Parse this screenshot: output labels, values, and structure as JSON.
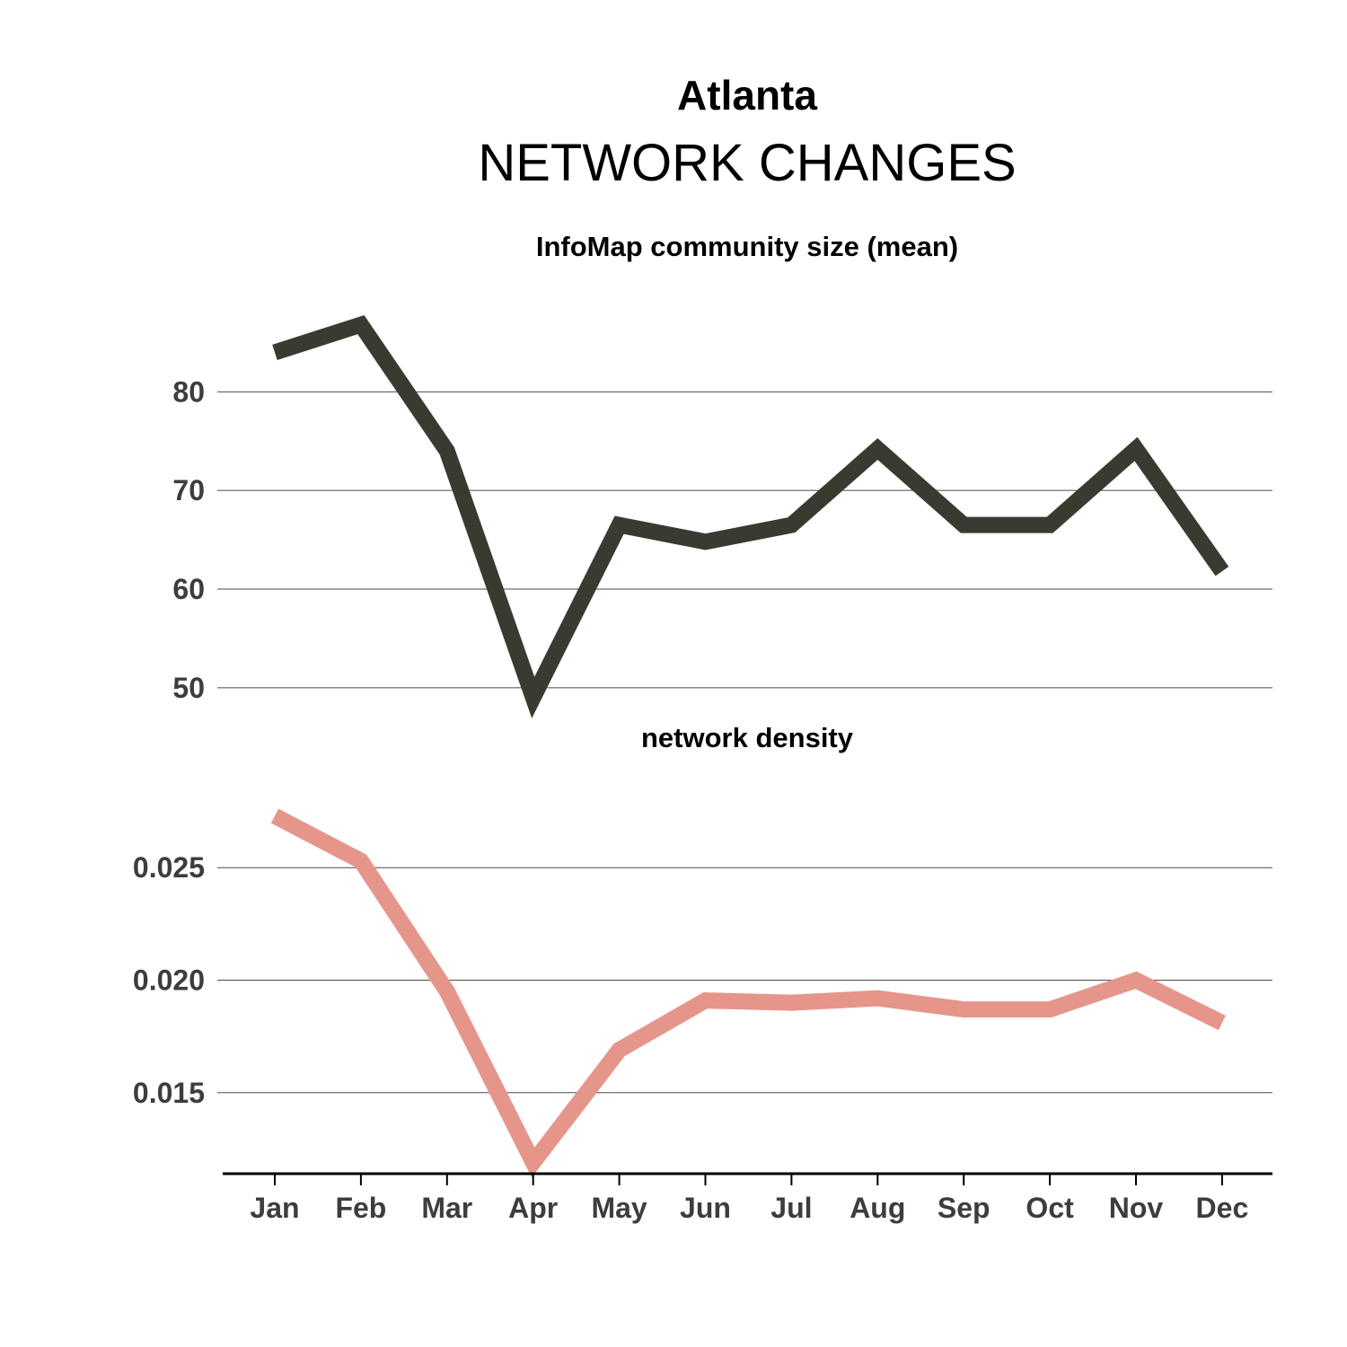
{
  "title": "Atlanta",
  "subtitle": "NETWORK CHANGES",
  "colors": {
    "community_size": "#3b3a31",
    "density": "#e6958a"
  },
  "chart_data": [
    {
      "type": "line",
      "title": "InfoMap community size (mean)",
      "categories": [
        "Jan",
        "Feb",
        "Mar",
        "Apr",
        "May",
        "Jun",
        "Jul",
        "Aug",
        "Sep",
        "Oct",
        "Nov",
        "Dec"
      ],
      "values": [
        84.0,
        86.8,
        74.0,
        49.0,
        66.5,
        64.8,
        66.5,
        74.2,
        66.5,
        66.5,
        74.2,
        61.8
      ],
      "yticks": [
        80,
        70,
        60,
        50
      ],
      "ylim": [
        47.8,
        91.5
      ],
      "grid": true
    },
    {
      "type": "line",
      "title": "network density",
      "categories": [
        "Jan",
        "Feb",
        "Mar",
        "Apr",
        "May",
        "Jun",
        "Jul",
        "Aug",
        "Sep",
        "Oct",
        "Nov",
        "Dec"
      ],
      "values": [
        0.0273,
        0.0253,
        0.0195,
        0.0119,
        0.0169,
        0.0191,
        0.019,
        0.0192,
        0.0187,
        0.0187,
        0.02,
        0.0181
      ],
      "yticks": [
        "0.025",
        "0.020",
        "0.015"
      ],
      "ylim": [
        0.0114,
        0.0294
      ],
      "grid": true
    }
  ],
  "x_axis": {
    "tick_labels": [
      "Jan",
      "Feb",
      "Mar",
      "Apr",
      "May",
      "Jun",
      "Jul",
      "Aug",
      "Sep",
      "Oct",
      "Nov",
      "Dec"
    ]
  }
}
